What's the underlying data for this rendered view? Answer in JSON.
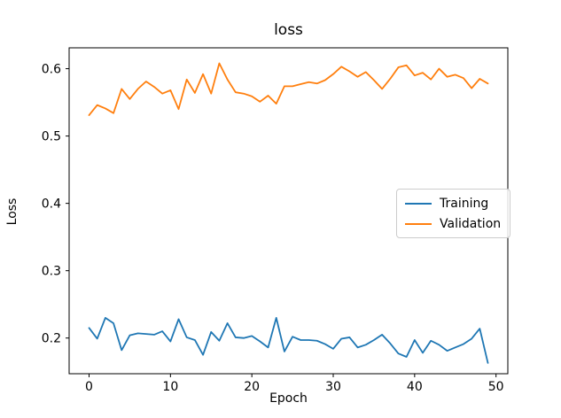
{
  "chart_data": {
    "type": "line",
    "title": "loss",
    "xlabel": "Epoch",
    "ylabel": "Loss",
    "x": [
      0,
      1,
      2,
      3,
      4,
      5,
      6,
      7,
      8,
      9,
      10,
      11,
      12,
      13,
      14,
      15,
      16,
      17,
      18,
      19,
      20,
      21,
      22,
      23,
      24,
      25,
      26,
      27,
      28,
      29,
      30,
      31,
      32,
      33,
      34,
      35,
      36,
      37,
      38,
      39,
      40,
      41,
      42,
      43,
      44,
      45,
      46,
      47,
      48,
      49
    ],
    "series": [
      {
        "name": "Training",
        "color": "#1f77b4",
        "values": [
          0.215,
          0.199,
          0.23,
          0.222,
          0.182,
          0.204,
          0.207,
          0.206,
          0.205,
          0.21,
          0.195,
          0.228,
          0.201,
          0.197,
          0.175,
          0.209,
          0.196,
          0.222,
          0.201,
          0.2,
          0.203,
          0.195,
          0.186,
          0.23,
          0.18,
          0.202,
          0.197,
          0.197,
          0.196,
          0.191,
          0.184,
          0.199,
          0.201,
          0.186,
          0.19,
          0.197,
          0.205,
          0.192,
          0.177,
          0.172,
          0.197,
          0.178,
          0.196,
          0.19,
          0.181,
          0.186,
          0.191,
          0.199,
          0.214,
          0.163
        ]
      },
      {
        "name": "Validation",
        "color": "#ff7f0e",
        "values": [
          0.531,
          0.546,
          0.541,
          0.534,
          0.57,
          0.555,
          0.57,
          0.581,
          0.573,
          0.563,
          0.568,
          0.54,
          0.584,
          0.564,
          0.592,
          0.563,
          0.608,
          0.584,
          0.565,
          0.563,
          0.559,
          0.551,
          0.56,
          0.548,
          0.574,
          0.574,
          0.577,
          0.58,
          0.578,
          0.583,
          0.592,
          0.603,
          0.596,
          0.588,
          0.595,
          0.583,
          0.57,
          0.585,
          0.602,
          0.605,
          0.59,
          0.594,
          0.584,
          0.6,
          0.588,
          0.591,
          0.586,
          0.571,
          0.585,
          0.578
        ]
      }
    ],
    "xlim": [
      -2.45,
      51.45
    ],
    "ylim": [
      0.147,
      0.631
    ],
    "xticks": [
      0,
      10,
      20,
      30,
      40,
      50
    ],
    "yticks": [
      0.2,
      0.3,
      0.4,
      0.5,
      0.6
    ],
    "grid": false,
    "legend": {
      "position": "center-right",
      "entries": [
        "Training",
        "Validation"
      ]
    }
  }
}
